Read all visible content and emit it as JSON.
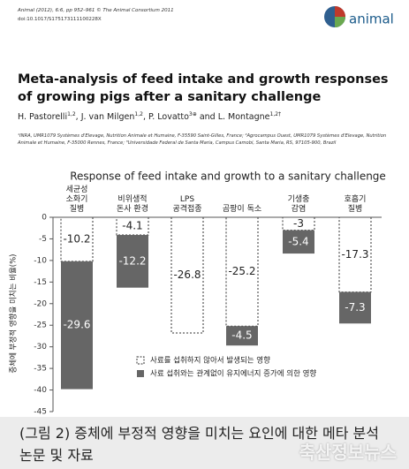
{
  "header": {
    "journal": "Animal (2012), 6:6, pp 952–961 © The Animal Consortium 2011",
    "doi": "doi:10.1017/S175173111100228X",
    "logo": "animal",
    "title": "Meta-analysis of feed intake and growth responses of growing pigs after a sanitary challenge",
    "authors": [
      {
        "name": "H. Pastorelli",
        "sup": "1,2"
      },
      {
        "name": "J. van Milgen",
        "sup": "1,2"
      },
      {
        "name": "P. Lovatto",
        "sup": "3⊕"
      },
      {
        "name": "L. Montagne",
        "sup": "1,2†"
      }
    ],
    "conjunction": "and",
    "affiliations": "¹INRA, UMR1079 Systèmes d'Elevage, Nutrition Animale et Humaine, F-35590 Saint-Gilles, France; ²Agrocampus Ouest, UMR1079 Systèmes d'Elevage, Nutrition Animale et Humaine, F-35000 Rennes, France; ³Universidade Federal de Santa Maria, Campus Camobi, Santa Maria, RS, 97105-900, Brazil"
  },
  "chart_data": {
    "type": "stacked-bar",
    "title": "Response of feed intake and growth to a sanitary challenge",
    "y_label": "증체에 부정적 영향을 미치는 비율(%)",
    "categories": [
      "세균성\n소화기\n질병",
      "비위생적\n돈사 환경",
      "LPS\n공격접종",
      "곰팡이 독소",
      "기생충\n감염",
      "호흡기\n질병"
    ],
    "series": [
      {
        "name": "사료를 섭취하지 않아서 발생되는 영향",
        "color": "#ffffff",
        "dashed": true,
        "values": [
          -10.2,
          -4.1,
          -26.8,
          -25.2,
          -3,
          -17.3
        ]
      },
      {
        "name": "사료 섭취와는 관계없이 유지에너지 증가에 의한 영향",
        "color": "#666666",
        "dashed": false,
        "values": [
          -29.6,
          -12.2,
          null,
          -4.5,
          -5.4,
          -7.3
        ]
      }
    ],
    "ylim": [
      -45,
      0
    ],
    "yticks": [
      0,
      -5,
      -10,
      -15,
      -20,
      -25,
      -30,
      -35,
      -40,
      -45
    ]
  },
  "caption": "(그림 2) 증체에 부정적 영향을 미치는 요인에 대한 메타 분석\n논문 및 자료",
  "watermark": "축산정보뉴스"
}
